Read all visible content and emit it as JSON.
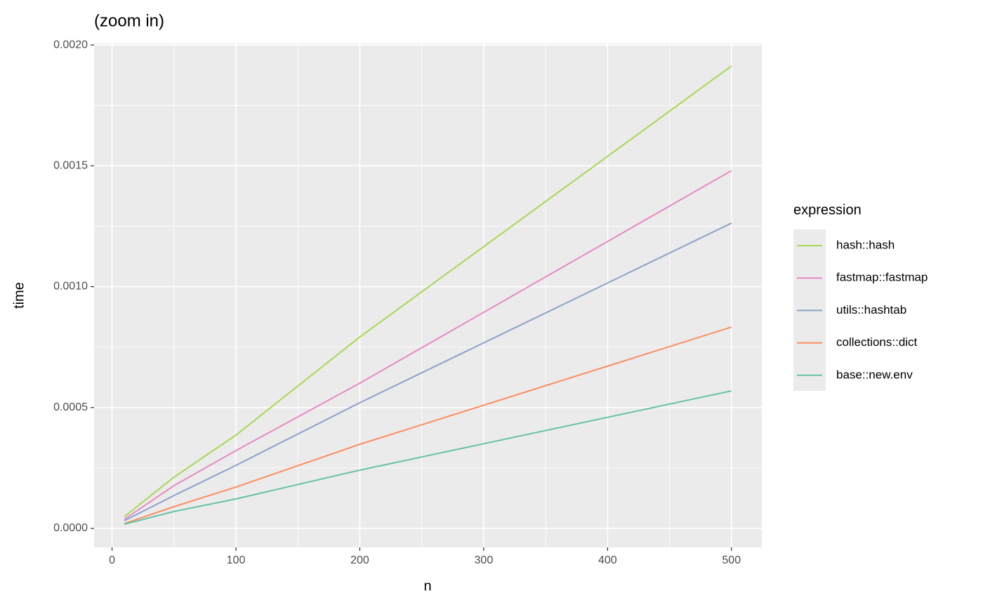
{
  "chart_data": {
    "type": "line",
    "title": "(zoom in)",
    "x_label": "n",
    "y_label": "time",
    "x": [
      10,
      50,
      100,
      200,
      500
    ],
    "series": [
      {
        "name": "hash::hash",
        "color": "#a6d854",
        "values": [
          4.9e-05,
          0.000212,
          0.000386,
          0.000792,
          0.001913
        ]
      },
      {
        "name": "fastmap::fastmap",
        "color": "#e78ac3",
        "values": [
          3.8e-05,
          0.000177,
          0.000322,
          0.000601,
          0.00148
        ]
      },
      {
        "name": "utils::hashtab",
        "color": "#8da0cb",
        "values": [
          3.2e-05,
          0.000136,
          0.000261,
          0.00052,
          0.001263
        ]
      },
      {
        "name": "collections::dict",
        "color": "#fc8d62",
        "values": [
          2e-05,
          9e-05,
          0.000171,
          0.000348,
          0.000833
        ]
      },
      {
        "name": "base::new.env",
        "color": "#66c2a5",
        "values": [
          1.74e-05,
          7e-05,
          0.000122,
          0.000241,
          0.000569
        ]
      }
    ],
    "legend_title": "expression",
    "legend_position": "right",
    "xlim": [
      -14.5,
      524.5
    ],
    "xticks": [
      0,
      100,
      200,
      300,
      400,
      500
    ],
    "ylim": [
      -7.84e-05,
      0.002006
    ],
    "yticks": [
      {
        "value": 0,
        "label": "0.0000"
      },
      {
        "value": 0.0005,
        "label": "0.0005"
      },
      {
        "value": 0.001,
        "label": "0.0010"
      },
      {
        "value": 0.0015,
        "label": "0.0015"
      },
      {
        "value": 0.002,
        "label": "0.0020"
      }
    ],
    "grid": true
  }
}
